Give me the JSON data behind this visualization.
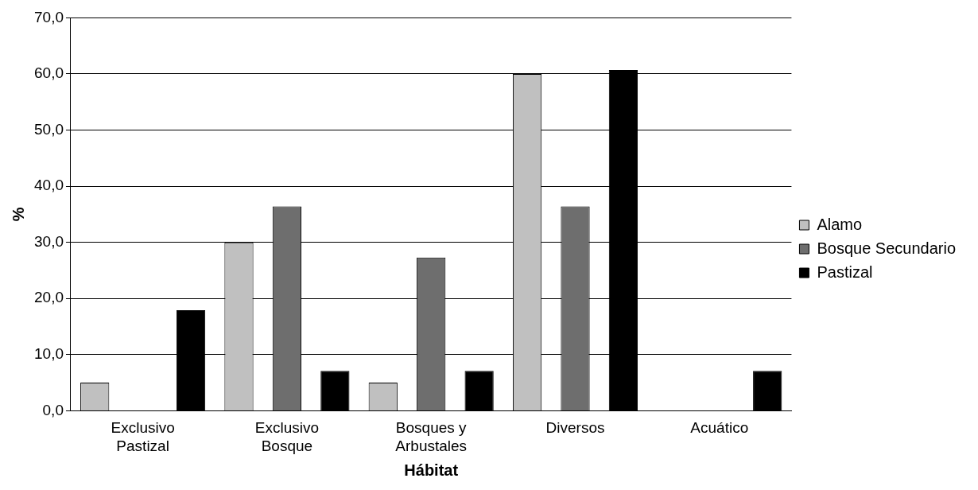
{
  "chart_data": {
    "type": "bar",
    "xlabel": "Hábitat",
    "ylabel": "%",
    "categories": [
      "Exclusivo Pastizal",
      "Exclusivo Bosque",
      "Bosques y Arbustales",
      "Diversos",
      "Acuático"
    ],
    "series": [
      {
        "name": "Alamo",
        "color": "#c0c0c0",
        "values": [
          5.0,
          30.0,
          5.0,
          60.0,
          0
        ]
      },
      {
        "name": "Bosque Secundario",
        "color": "#6e6e6e",
        "values": [
          0,
          36.4,
          27.3,
          36.4,
          0
        ]
      },
      {
        "name": "Pastizal",
        "color": "#000000",
        "values": [
          17.9,
          7.1,
          7.1,
          60.7,
          7.1
        ]
      }
    ],
    "ylim": [
      0,
      70
    ],
    "yticks": [
      {
        "value": 0,
        "label": "0,0"
      },
      {
        "value": 10,
        "label": "10,0"
      },
      {
        "value": 20,
        "label": "20,0"
      },
      {
        "value": 30,
        "label": "30,0"
      },
      {
        "value": 40,
        "label": "40,0"
      },
      {
        "value": 50,
        "label": "50,0"
      },
      {
        "value": 60,
        "label": "60,0"
      },
      {
        "value": 70,
        "label": "70,0"
      }
    ],
    "grid": "y",
    "legend": "right"
  }
}
